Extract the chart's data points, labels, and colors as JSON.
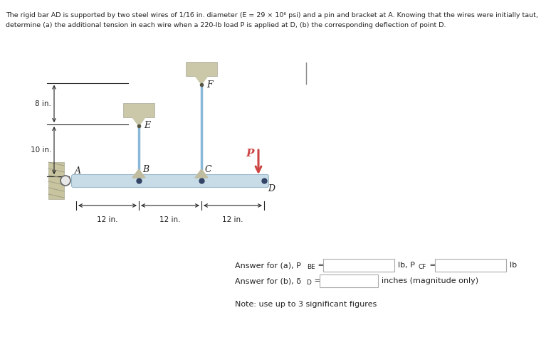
{
  "title_text": "The rigid bar AD is supported by two steel wires of 1/16 in. diameter (E = 29 × 10⁶ psi) and a pin and bracket at A. Knowing that the wires were initially taut,",
  "title_text2": "determine (a) the additional tension in each wire when a 220-lb load P is applied at D, (b) the corresponding deflection of point D.",
  "note_text": "Note: use up to 3 significant figures",
  "bg_color": "#ffffff",
  "wire_color": "#8ab8d8",
  "bar_color_face": "#c8dce8",
  "bar_color_edge": "#9ab8cc",
  "bracket_color": "#c8c4a0",
  "wall_color": "#c8c4a0",
  "dim_color": "#222222",
  "load_color": "#cc4444",
  "text_color": "#222222",
  "label_color": "#222222",
  "box_edge_color": "#aaaaaa",
  "pin_color": "#dddddd",
  "dot_color": "#333355"
}
